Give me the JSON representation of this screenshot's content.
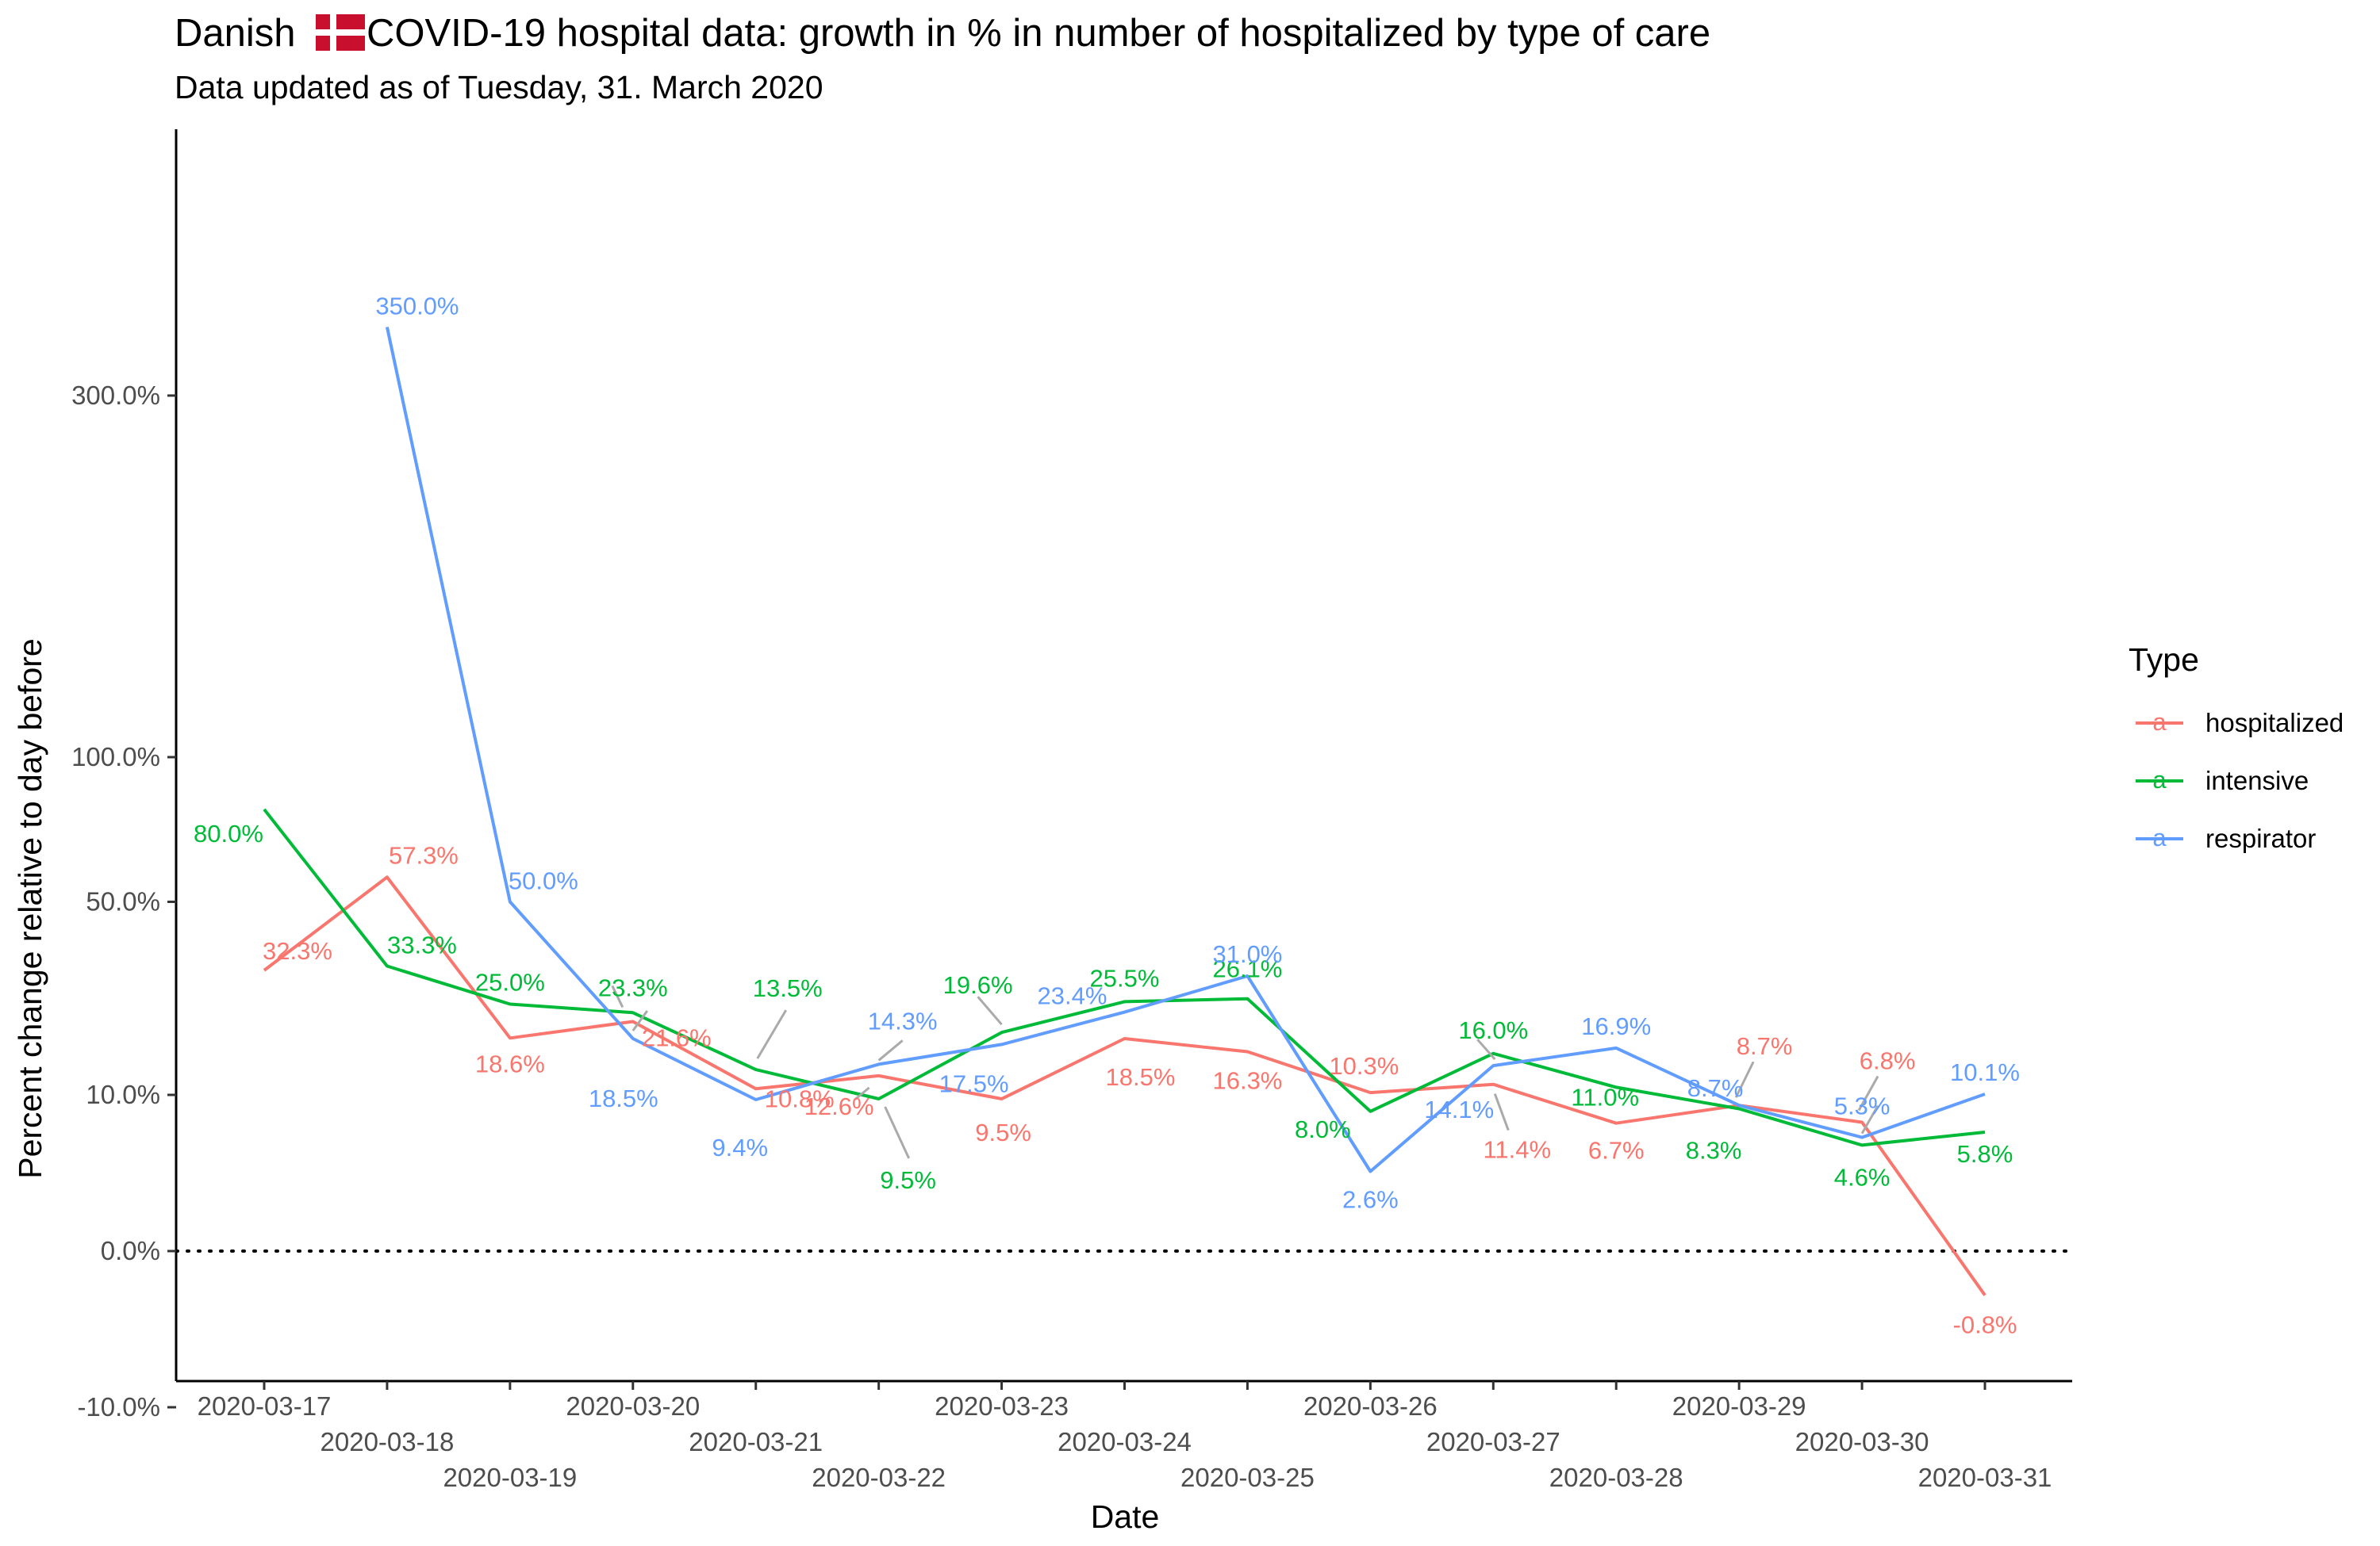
{
  "chart_data": {
    "type": "line",
    "title_text": "Danish",
    "title_rest": " COVID-19 hospital data: growth in % in number of hospitalized by type of care",
    "title_icon": "danish-flag-icon",
    "subtitle": "Data updated as of Tuesday, 31. March 2020",
    "xlabel": "Date",
    "ylabel": "Percent change relative to day before",
    "x": [
      "2020-03-17",
      "2020-03-18",
      "2020-03-19",
      "2020-03-20",
      "2020-03-21",
      "2020-03-22",
      "2020-03-23",
      "2020-03-24",
      "2020-03-25",
      "2020-03-26",
      "2020-03-27",
      "2020-03-28",
      "2020-03-29",
      "2020-03-30",
      "2020-03-31"
    ],
    "y_scale": "sqrt",
    "ylim": [
      -15,
      360
    ],
    "y_ticks": [
      -10,
      0,
      10,
      50,
      100,
      300
    ],
    "y_tick_labels": [
      "-10.0%",
      "0.0%",
      "10.0%",
      "50.0%",
      "100.0%",
      "300.0%"
    ],
    "reference_line": {
      "y": 0,
      "style": "dotted"
    },
    "grid": false,
    "legend": {
      "title": "Type",
      "position": "right"
    },
    "series": [
      {
        "name": "hospitalized",
        "color": "#F8766D",
        "values": [
          32.3,
          57.3,
          18.6,
          21.6,
          10.8,
          12.6,
          9.5,
          18.5,
          16.3,
          10.3,
          11.4,
          6.7,
          8.7,
          6.8,
          -0.8
        ],
        "labels": [
          "32.3%",
          "57.3%",
          "18.6%",
          "21.6%",
          "10.8%",
          "12.6%",
          "9.5%",
          "18.5%",
          "16.3%",
          "10.3%",
          "11.4%",
          "6.7%",
          "8.7%",
          "6.8%",
          "-0.8%"
        ]
      },
      {
        "name": "intensive",
        "color": "#00BA38",
        "values": [
          80.0,
          33.3,
          25.0,
          23.3,
          13.5,
          9.5,
          19.6,
          25.5,
          26.1,
          8.0,
          16.0,
          11.0,
          8.3,
          4.6,
          5.8
        ],
        "labels": [
          "80.0%",
          "33.3%",
          "25.0%",
          "23.3%",
          "13.5%",
          "9.5%",
          "19.6%",
          "25.5%",
          "26.1%",
          "8.0%",
          "16.0%",
          "11.0%",
          "8.3%",
          "4.6%",
          "5.8%"
        ]
      },
      {
        "name": "respirator",
        "color": "#619CFF",
        "values": [
          null,
          350.0,
          50.0,
          18.5,
          9.4,
          14.3,
          17.5,
          23.4,
          31.0,
          2.6,
          14.1,
          16.9,
          8.7,
          5.3,
          10.1
        ],
        "labels": [
          "",
          "350.0%",
          "50.0%",
          "18.5%",
          "9.4%",
          "14.3%",
          "17.5%",
          "23.4%",
          "31.0%",
          "2.6%",
          "14.1%",
          "16.9%",
          "8.7%",
          "5.3%",
          "10.1%"
        ]
      }
    ]
  }
}
